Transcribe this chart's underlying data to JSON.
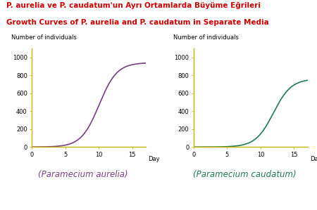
{
  "title_line1": "P. aurelia ve P. caudatum'un Ayrı Ortamlarda Büyüme Eğrileri",
  "title_line2": "Growth Curves of P. aurelia and P. caudatum in Separate Media",
  "title_color": "#cc0000",
  "title_fontsize": 7.5,
  "ylabel": "Number of individuals",
  "xlabel": "Day",
  "ylim": [
    0,
    1100
  ],
  "xlim": [
    0,
    17
  ],
  "yticks": [
    0,
    200,
    400,
    600,
    800,
    1000
  ],
  "xticks": [
    0,
    5,
    10,
    15
  ],
  "aurelia_color": "#7a3b8a",
  "caudatum_color": "#1e7a50",
  "aurelia_label": "(Paramecium aurelia)",
  "caudatum_label": "(Paramecium caudatum)",
  "aurelia_K": 940,
  "aurelia_r": 0.75,
  "aurelia_x0": 0.5,
  "caudatum_K": 760,
  "caudatum_r": 0.75,
  "caudatum_x0": 0.1,
  "axis_color": "#c8b400",
  "label_fontsize": 6.0,
  "species_label_fontsize": 8.5,
  "ylabel_fontsize": 6.0,
  "tick_fontsize": 6.0
}
